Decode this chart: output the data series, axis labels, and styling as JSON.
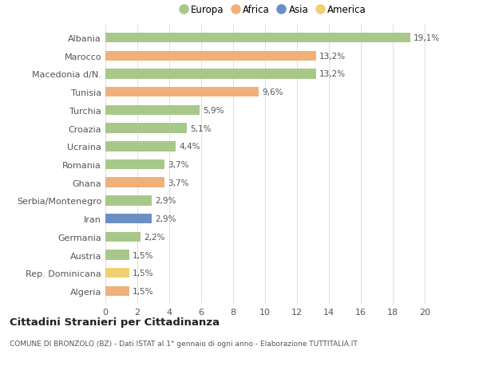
{
  "categories": [
    "Albania",
    "Marocco",
    "Macedonia d/N.",
    "Tunisia",
    "Turchia",
    "Croazia",
    "Ucraina",
    "Romania",
    "Ghana",
    "Serbia/Montenegro",
    "Iran",
    "Germania",
    "Austria",
    "Rep. Dominicana",
    "Algeria"
  ],
  "values": [
    19.1,
    13.2,
    13.2,
    9.6,
    5.9,
    5.1,
    4.4,
    3.7,
    3.7,
    2.9,
    2.9,
    2.2,
    1.5,
    1.5,
    1.5
  ],
  "labels": [
    "19,1%",
    "13,2%",
    "13,2%",
    "9,6%",
    "5,9%",
    "5,1%",
    "4,4%",
    "3,7%",
    "3,7%",
    "2,9%",
    "2,9%",
    "2,2%",
    "1,5%",
    "1,5%",
    "1,5%"
  ],
  "continents": [
    "Europa",
    "Africa",
    "Europa",
    "Africa",
    "Europa",
    "Europa",
    "Europa",
    "Europa",
    "Africa",
    "Europa",
    "Asia",
    "Europa",
    "Europa",
    "America",
    "Africa"
  ],
  "colors": {
    "Europa": "#a8c88a",
    "Africa": "#f0b07a",
    "Asia": "#6b8fc4",
    "America": "#f0d070"
  },
  "legend_order": [
    "Europa",
    "Africa",
    "Asia",
    "America"
  ],
  "legend_colors": [
    "#a8c88a",
    "#f0b07a",
    "#6b8fc4",
    "#f0d070"
  ],
  "title": "Cittadini Stranieri per Cittadinanza",
  "subtitle": "COMUNE DI BRONZOLO (BZ) - Dati ISTAT al 1° gennaio di ogni anno - Elaborazione TUTTITALIA.IT",
  "xlim": [
    0,
    21
  ],
  "xticks": [
    0,
    2,
    4,
    6,
    8,
    10,
    12,
    14,
    16,
    18,
    20
  ],
  "background_color": "#ffffff",
  "grid_color": "#e0e0e0"
}
